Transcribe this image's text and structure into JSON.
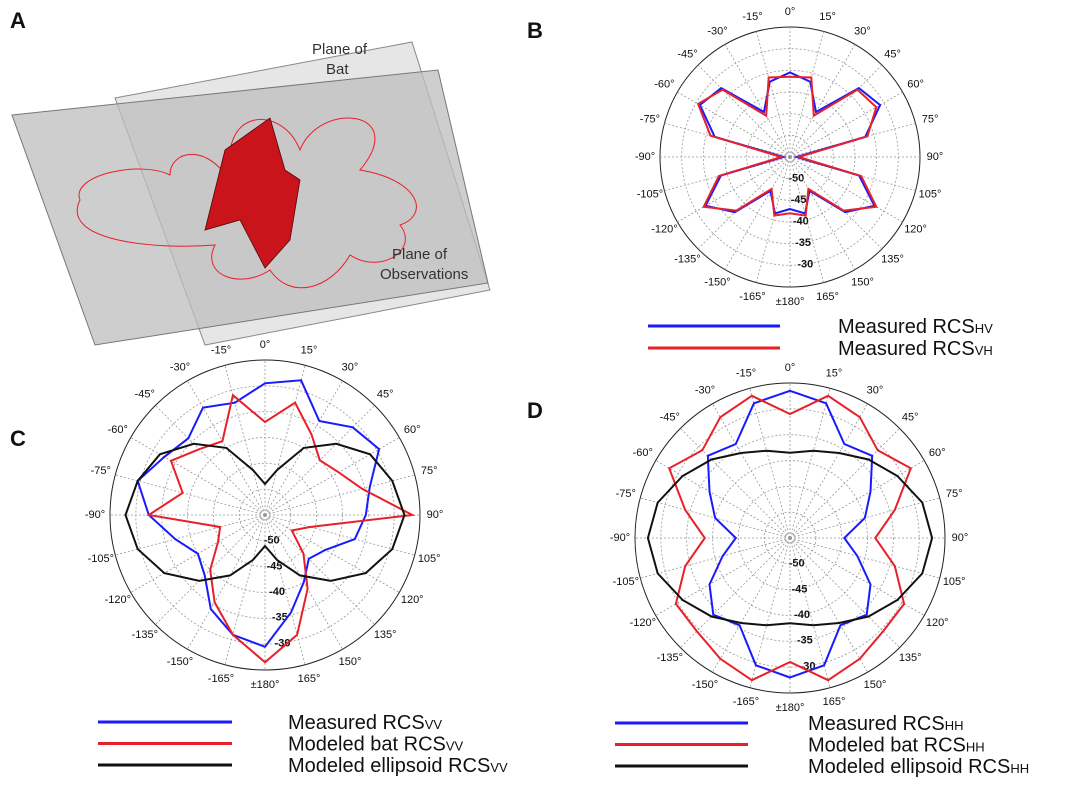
{
  "panel_a": {
    "panel_label": "A",
    "plane_bat": [
      "Plane of",
      "Bat"
    ],
    "plane_obs": [
      "Plane of",
      "Observations"
    ]
  },
  "chart_data": [
    {
      "type": "polar",
      "panel_label": "B",
      "rlim": [
        -55,
        -25
      ],
      "rticks": [
        -50,
        -45,
        -40,
        -35,
        -30
      ],
      "grid": true,
      "xticks": [
        {
          "value": 0,
          "label": "0°"
        },
        {
          "value": 15,
          "label": "15°"
        },
        {
          "value": 30,
          "label": "30°"
        },
        {
          "value": 45,
          "label": "45°"
        },
        {
          "value": 60,
          "label": "60°"
        },
        {
          "value": 75,
          "label": "75°"
        },
        {
          "value": 90,
          "label": "90°"
        },
        {
          "value": 105,
          "label": "105°"
        },
        {
          "value": 120,
          "label": "120°"
        },
        {
          "value": 135,
          "label": "135°"
        },
        {
          "value": 150,
          "label": "150°"
        },
        {
          "value": 165,
          "label": "165°"
        },
        {
          "value": 180,
          "label": "±180°"
        },
        {
          "value": -165,
          "label": "-165°"
        },
        {
          "value": -150,
          "label": "-150°"
        },
        {
          "value": -135,
          "label": "-135°"
        },
        {
          "value": -120,
          "label": "-120°"
        },
        {
          "value": -105,
          "label": "-105°"
        },
        {
          "value": -90,
          "label": "-90°"
        },
        {
          "value": -75,
          "label": "-75°"
        },
        {
          "value": -60,
          "label": "-60°"
        },
        {
          "value": -45,
          "label": "-45°"
        },
        {
          "value": -30,
          "label": "-30°"
        },
        {
          "value": -15,
          "label": "-15°"
        }
      ],
      "x": [
        -180,
        -165,
        -150,
        -135,
        -120,
        -105,
        -90,
        -75,
        -60,
        -45,
        -30,
        -15,
        0,
        15,
        30,
        45,
        60,
        75,
        90,
        105,
        120,
        135,
        150,
        165
      ],
      "series": [
        {
          "name": "Measured RCS",
          "name_sub": "HV",
          "color": "#1a1aff",
          "values": [
            -43,
            -41.5,
            -46,
            -37,
            -32.5,
            -38.5,
            -53.5,
            -37,
            -31,
            -32.5,
            -43,
            -37,
            -35.5,
            -37,
            -43,
            -32.5,
            -31,
            -37,
            -53.5,
            -38.5,
            -32.5,
            -37,
            -46,
            -41.5
          ]
        },
        {
          "name": "Measured RCS",
          "name_sub": "VH",
          "color": "#e8202a",
          "values": [
            -42,
            -41,
            -46.5,
            -37.5,
            -32,
            -38,
            -53,
            -36,
            -30.5,
            -33,
            -44,
            -36,
            -36.5,
            -36,
            -44,
            -33,
            -32,
            -36.5,
            -53,
            -38,
            -32,
            -37.5,
            -46.5,
            -41
          ]
        }
      ]
    },
    {
      "type": "polar",
      "panel_label": "C",
      "rlim": [
        -55,
        -25
      ],
      "rticks": [
        -50,
        -45,
        -40,
        -35,
        -30
      ],
      "grid": true,
      "xticks": [
        {
          "value": 0,
          "label": "0°"
        },
        {
          "value": 15,
          "label": "15°"
        },
        {
          "value": 30,
          "label": "30°"
        },
        {
          "value": 45,
          "label": "45°"
        },
        {
          "value": 60,
          "label": "60°"
        },
        {
          "value": 75,
          "label": "75°"
        },
        {
          "value": 90,
          "label": "90°"
        },
        {
          "value": 105,
          "label": "105°"
        },
        {
          "value": 120,
          "label": "120°"
        },
        {
          "value": 135,
          "label": "135°"
        },
        {
          "value": 150,
          "label": "150°"
        },
        {
          "value": 165,
          "label": "165°"
        },
        {
          "value": 180,
          "label": "±180°"
        },
        {
          "value": -165,
          "label": "-165°"
        },
        {
          "value": -150,
          "label": "-150°"
        },
        {
          "value": -135,
          "label": "-135°"
        },
        {
          "value": -120,
          "label": "-120°"
        },
        {
          "value": -105,
          "label": "-105°"
        },
        {
          "value": -90,
          "label": "-90°"
        },
        {
          "value": -75,
          "label": "-75°"
        },
        {
          "value": -60,
          "label": "-60°"
        },
        {
          "value": -45,
          "label": "-45°"
        },
        {
          "value": -30,
          "label": "-30°"
        },
        {
          "value": -15,
          "label": "-15°"
        }
      ],
      "x": [
        -180,
        -165,
        -150,
        -135,
        -120,
        -105,
        -90,
        -75,
        -60,
        -45,
        -30,
        -15,
        0,
        15,
        30,
        45,
        60,
        75,
        90,
        105,
        120,
        135,
        150,
        165
      ],
      "series": [
        {
          "name": "Measured RCS",
          "name_sub": "VV",
          "color": "#1a1aff",
          "values": [
            -29.5,
            -31,
            -34,
            -38.5,
            -40,
            -37,
            -32.5,
            -29.5,
            -32.5,
            -34,
            -31,
            -32.5,
            -29.5,
            -28,
            -34,
            -31,
            -29.5,
            -34,
            -35.5,
            -37,
            -41.5,
            -43,
            -40,
            -35.5
          ]
        },
        {
          "name": "Modeled bat RCS",
          "name_sub": "VV",
          "color": "#e8202a",
          "values": [
            -26.5,
            -31,
            -35.5,
            -40,
            -44.5,
            -46,
            -32.5,
            -38.5,
            -34,
            -37,
            -38.5,
            -31,
            -37,
            -32.5,
            -37,
            -40,
            -38.5,
            -35.5,
            -26.5,
            -46,
            -49,
            -44.5,
            -38.5,
            -31
          ]
        },
        {
          "name": "Modeled ellipsoid RCS",
          "name_sub": "VV",
          "color": "#111111",
          "values": [
            -49,
            -46,
            -41.5,
            -37,
            -32.5,
            -29.5,
            -28,
            -29.5,
            -31.5,
            -35.5,
            -40,
            -46,
            -49,
            -46,
            -40,
            -35.5,
            -31.5,
            -29.5,
            -28,
            -29.5,
            -32.5,
            -37,
            -41.5,
            -46
          ]
        }
      ]
    },
    {
      "type": "polar",
      "panel_label": "D",
      "rlim": [
        -55,
        -25
      ],
      "rticks": [
        -50,
        -45,
        -40,
        -35,
        -30
      ],
      "grid": true,
      "xticks": [
        {
          "value": 0,
          "label": "0°"
        },
        {
          "value": 15,
          "label": "15°"
        },
        {
          "value": 30,
          "label": "30°"
        },
        {
          "value": 45,
          "label": "45°"
        },
        {
          "value": 60,
          "label": "60°"
        },
        {
          "value": 75,
          "label": "75°"
        },
        {
          "value": 90,
          "label": "90°"
        },
        {
          "value": 105,
          "label": "105°"
        },
        {
          "value": 120,
          "label": "120°"
        },
        {
          "value": 135,
          "label": "135°"
        },
        {
          "value": 150,
          "label": "150°"
        },
        {
          "value": 165,
          "label": "165°"
        },
        {
          "value": 180,
          "label": "±180°"
        },
        {
          "value": -165,
          "label": "-165°"
        },
        {
          "value": -150,
          "label": "-150°"
        },
        {
          "value": -135,
          "label": "-135°"
        },
        {
          "value": -120,
          "label": "-120°"
        },
        {
          "value": -105,
          "label": "-105°"
        },
        {
          "value": -90,
          "label": "-90°"
        },
        {
          "value": -75,
          "label": "-75°"
        },
        {
          "value": -60,
          "label": "-60°"
        },
        {
          "value": -45,
          "label": "-45°"
        },
        {
          "value": -30,
          "label": "-30°"
        },
        {
          "value": -15,
          "label": "-15°"
        }
      ],
      "x": [
        -180,
        -165,
        -150,
        -135,
        -120,
        -105,
        -90,
        -75,
        -60,
        -45,
        -30,
        -15,
        0,
        15,
        30,
        45,
        60,
        75,
        90,
        105,
        120,
        135,
        150,
        165
      ],
      "series": [
        {
          "name": "Measured RCS",
          "name_sub": "HH",
          "color": "#1a1aff",
          "values": [
            -28,
            -29.5,
            -35.5,
            -34,
            -37,
            -41.5,
            -44.5,
            -40,
            -37,
            -32.5,
            -34,
            -28,
            -26.5,
            -28,
            -34,
            -32.5,
            -37,
            -40,
            -44.5,
            -41.5,
            -37,
            -34,
            -35.5,
            -29.5
          ]
        },
        {
          "name": "Modeled bat RCS",
          "name_sub": "HH",
          "color": "#e8202a",
          "values": [
            -31,
            -26.5,
            -28,
            -29.5,
            -29.5,
            -34,
            -38.5,
            -34,
            -28,
            -31,
            -28,
            -26.5,
            -31,
            -26.5,
            -28,
            -31,
            -28,
            -34,
            -38.5,
            -34,
            -29.5,
            -29.5,
            -28,
            -26.5
          ]
        },
        {
          "name": "Modeled ellipsoid RCS",
          "name_sub": "HH",
          "color": "#111111",
          "values": [
            -38.5,
            -37.5,
            -36,
            -33.5,
            -31,
            -28.5,
            -27.5,
            -28.5,
            -31,
            -33.5,
            -36,
            -37.5,
            -38.5,
            -37.5,
            -36,
            -33.5,
            -31,
            -28.5,
            -27.5,
            -28.5,
            -31,
            -33.5,
            -36,
            -37.5
          ]
        }
      ]
    }
  ]
}
